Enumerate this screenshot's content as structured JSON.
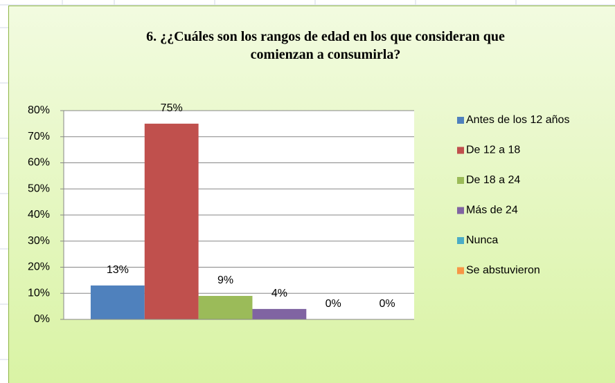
{
  "chart_data": {
    "type": "bar",
    "title": "6. ¿¿Cuáles son los rangos de edad  en los que consideran que\ncomienzan a consumirla?",
    "series": [
      {
        "name": "Antes de los 12 años",
        "color": "#4f81bd",
        "values": [
          13
        ],
        "value_labels": [
          "13%"
        ]
      },
      {
        "name": "De 12 a 18",
        "color": "#c0504d",
        "values": [
          75
        ],
        "value_labels": [
          "75%"
        ]
      },
      {
        "name": "De 18 a 24",
        "color": "#9bbb59",
        "values": [
          9
        ],
        "value_labels": [
          "9%"
        ]
      },
      {
        "name": "Más de 24",
        "color": "#8064a2",
        "values": [
          4
        ],
        "value_labels": [
          "4%"
        ]
      },
      {
        "name": "Nunca",
        "color": "#4bacc6",
        "values": [
          0
        ],
        "value_labels": [
          "0%"
        ]
      },
      {
        "name": "Se abstuvieron",
        "color": "#f79646",
        "values": [
          0
        ],
        "value_labels": [
          "0%"
        ]
      }
    ],
    "ylim": [
      0,
      80
    ],
    "yticks": [
      {
        "value": 0,
        "label": "0%"
      },
      {
        "value": 10,
        "label": "10%"
      },
      {
        "value": 20,
        "label": "20%"
      },
      {
        "value": 30,
        "label": "30%"
      },
      {
        "value": 40,
        "label": "40%"
      },
      {
        "value": 50,
        "label": "50%"
      },
      {
        "value": 60,
        "label": "60%"
      },
      {
        "value": 70,
        "label": "70%"
      },
      {
        "value": 80,
        "label": "80%"
      }
    ],
    "grid": true,
    "legend": "right"
  }
}
